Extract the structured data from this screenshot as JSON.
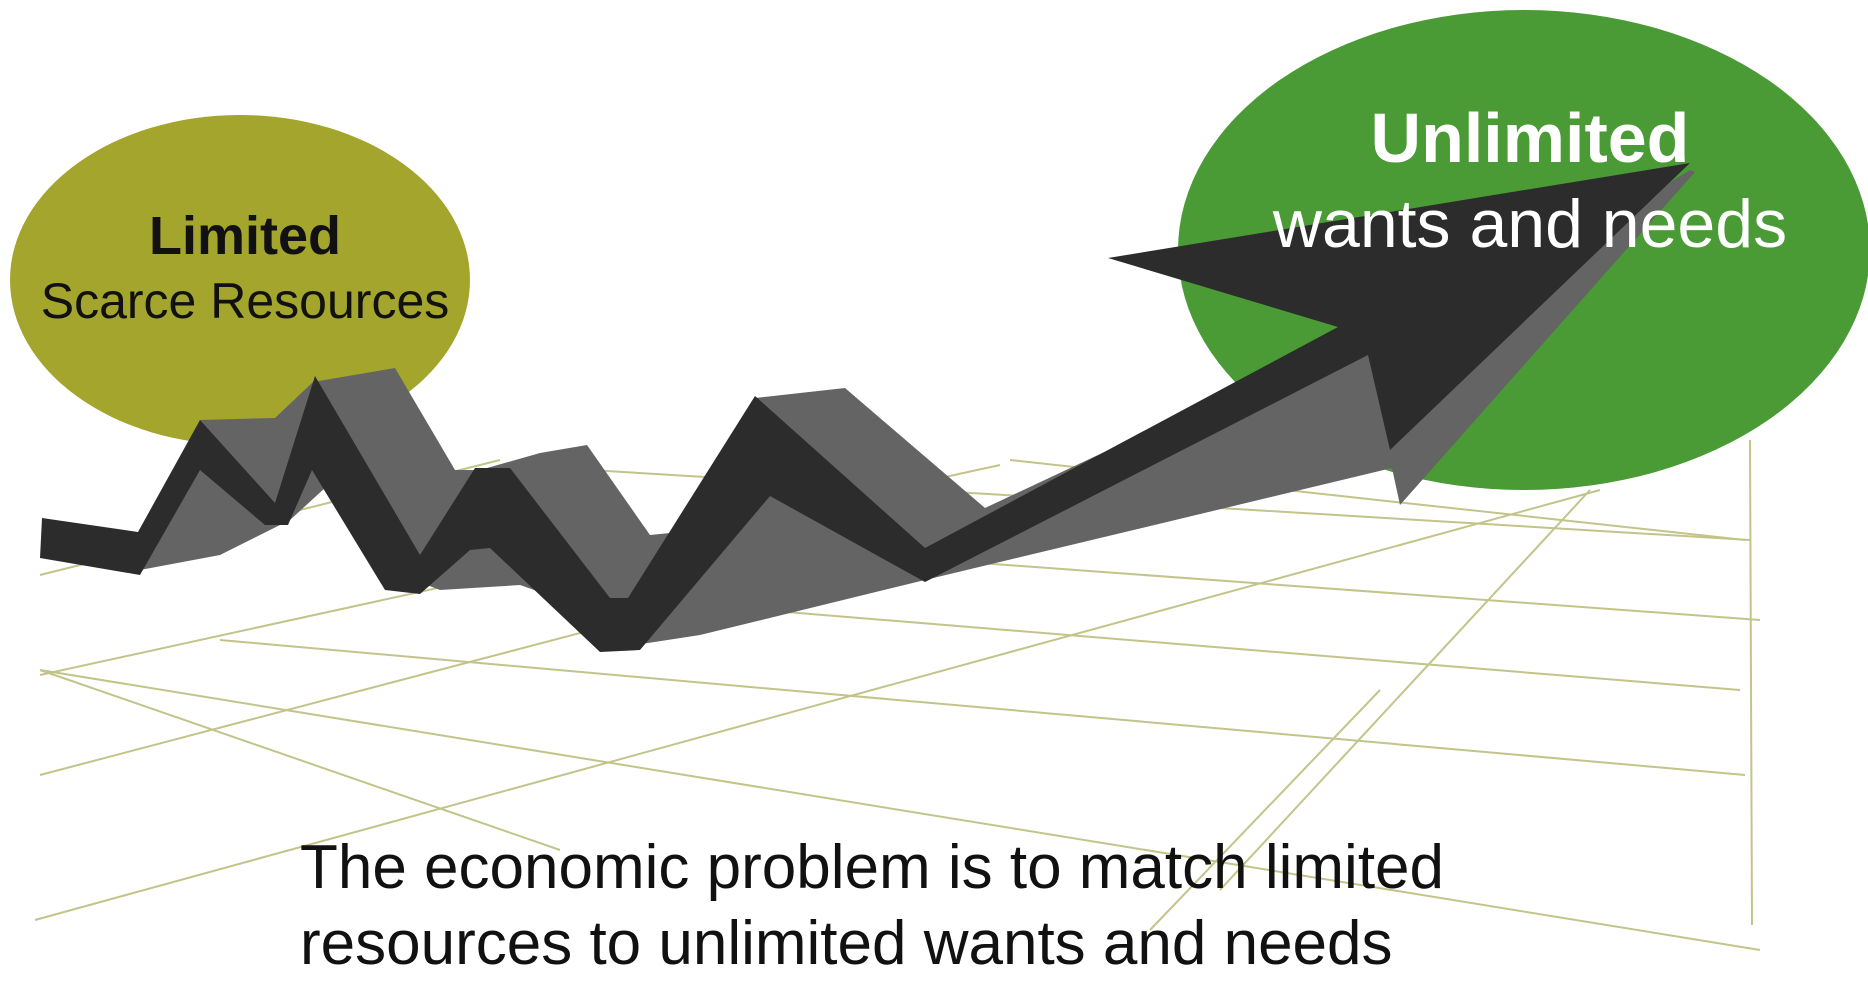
{
  "limited": {
    "title": "Limited",
    "subtitle": "Scarce Resources",
    "color": "#a3a52d"
  },
  "unlimited": {
    "title": "Unlimited",
    "subtitle": "wants and needs",
    "color": "#4a9a35"
  },
  "caption": {
    "line1": "The economic problem is to match limited",
    "line2": "resources to unlimited wants and needs"
  },
  "colors": {
    "grid": "#c2c48a",
    "arrow_front": "#2c2c2c",
    "arrow_side": "#646464"
  }
}
